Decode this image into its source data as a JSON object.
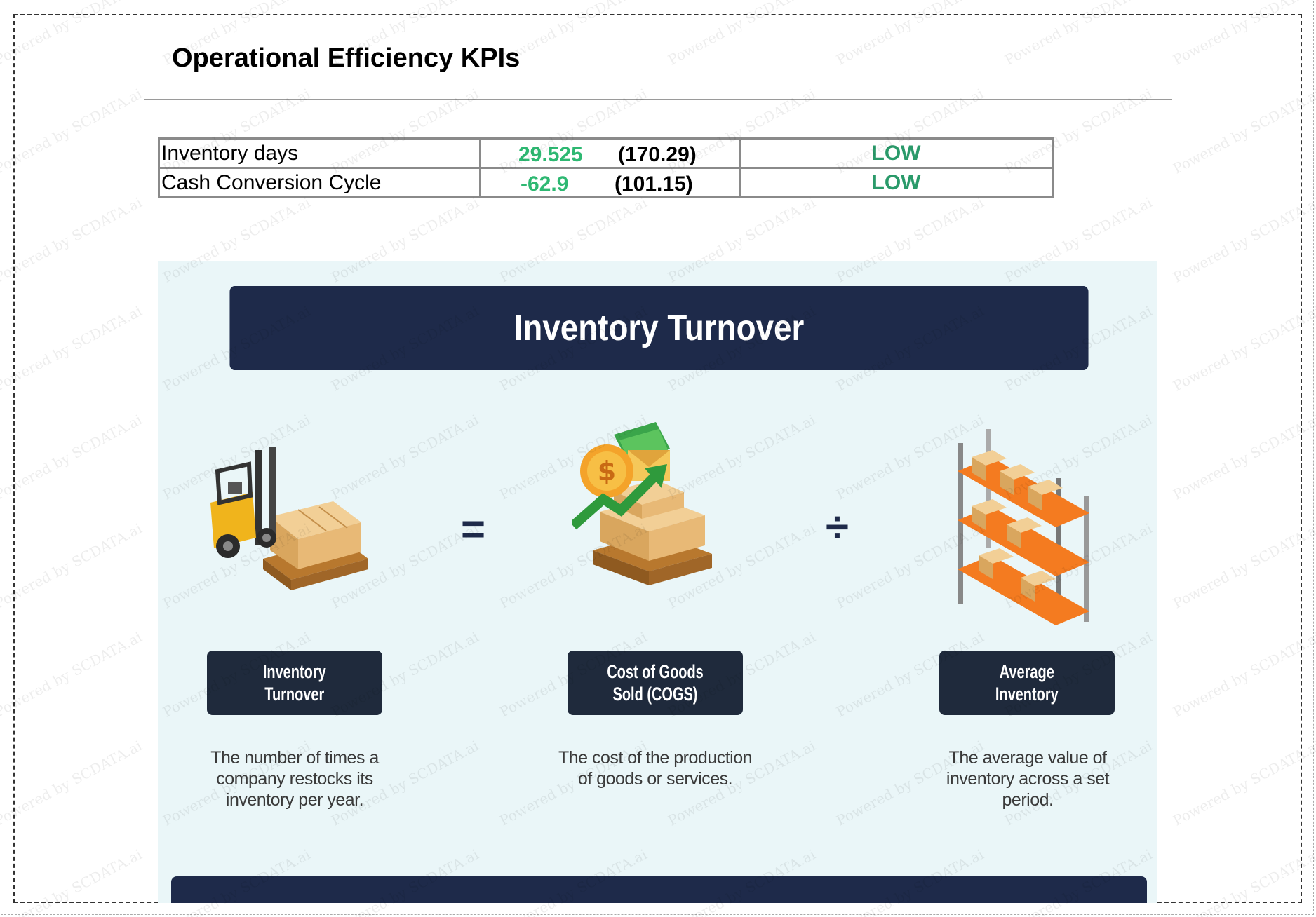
{
  "page_title": "Operational Efficiency KPIs",
  "kpis": [
    {
      "name": "Inventory days",
      "value": "29.525",
      "benchmark": "(170.29)",
      "status": "LOW",
      "value_color": "#2eb872"
    },
    {
      "name": "Cash Conversion Cycle",
      "value": "-62.9",
      "benchmark": "(101.15)",
      "status": "LOW",
      "value_color": "#2eb872"
    }
  ],
  "infographic": {
    "title": "Inventory Turnover",
    "equals": "=",
    "divide": "÷",
    "items": [
      {
        "label_line1": "Inventory",
        "label_line2": "Turnover",
        "desc1": "The number of times a",
        "desc2": "company restocks its",
        "desc3": "inventory per year.",
        "icon": "forklift-icon"
      },
      {
        "label_line1": "Cost of Goods",
        "label_line2": "Sold (COGS)",
        "desc1": "The cost of the production",
        "desc2": "of goods or services.",
        "desc3": "",
        "icon": "money-boxes-icon"
      },
      {
        "label_line1": "Average",
        "label_line2": "Inventory",
        "desc1": "The average value of",
        "desc2": "inventory across a set",
        "desc3": "period.",
        "icon": "warehouse-shelf-icon"
      }
    ]
  },
  "watermark": "Powered by SCDATA.ai",
  "colors": {
    "banner": "#1e2a4a",
    "label_box": "#1f2a3c",
    "panel_bg": "#eaf6f8",
    "status": "#2a9a6a",
    "value": "#2eb872"
  }
}
